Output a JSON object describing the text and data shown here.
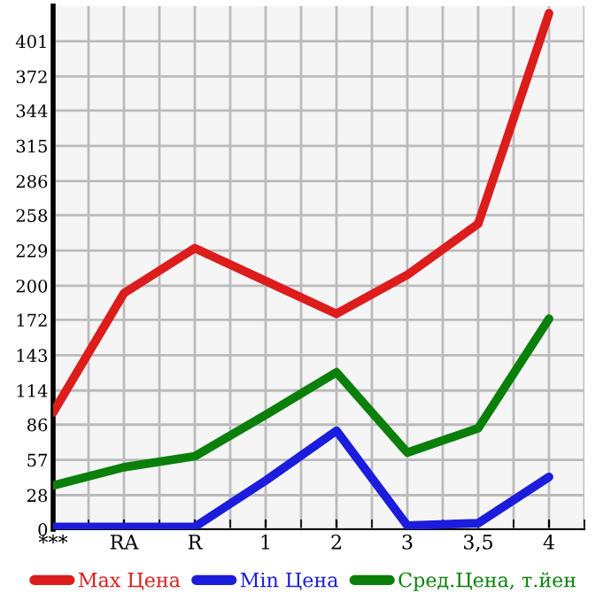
{
  "chart_data": {
    "type": "line",
    "categories": [
      "***",
      "RA",
      "R",
      "1",
      "2",
      "3",
      "3,5",
      "4"
    ],
    "series": [
      {
        "name": "Max Цена",
        "color": "#dd1c1c",
        "values": [
          96,
          194,
          231,
          204,
          177,
          209,
          251,
          424
        ]
      },
      {
        "name": "Min Цена",
        "color": "#1c1cdd",
        "values": [
          2,
          2,
          2,
          40,
          81,
          3,
          5,
          43
        ]
      },
      {
        "name": "Сред.Цена, т.йен",
        "color": "#0a800a",
        "values": [
          36,
          51,
          60,
          94,
          129,
          63,
          83,
          173
        ]
      }
    ],
    "ylim": [
      0,
      430
    ],
    "yticks": [
      0,
      28,
      57,
      86,
      114,
      143,
      172,
      200,
      229,
      258,
      286,
      315,
      344,
      372,
      401
    ],
    "grid": true,
    "legend": "bottom",
    "marker": "none",
    "line_style": "solid"
  }
}
